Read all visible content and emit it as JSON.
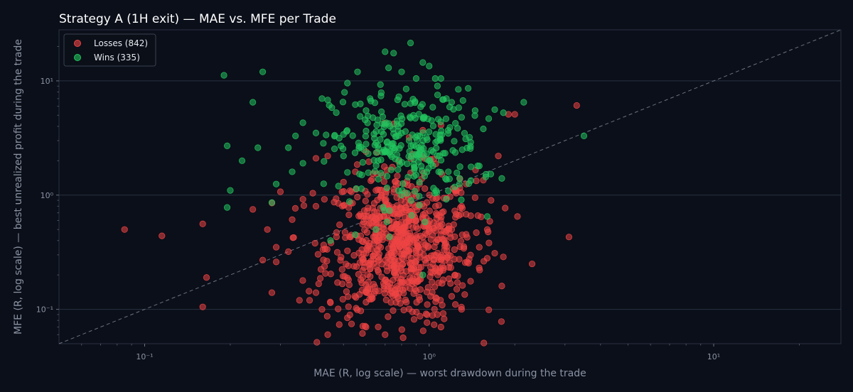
{
  "chart_data": {
    "type": "scatter",
    "title": "Strategy A (1H exit) — MAE vs. MFE per Trade",
    "xlabel": "MAE (R, log scale) — worst drawdown during the trade",
    "ylabel": "MFE (R, log scale) — best unrealized profit during the trade",
    "xscale": "log",
    "yscale": "log",
    "xlim": [
      0.05,
      28
    ],
    "ylim": [
      0.05,
      28
    ],
    "x_ticks": [
      "10⁻¹",
      "10⁰",
      "10¹"
    ],
    "y_ticks": [
      "10⁻¹",
      "10⁰",
      "10¹"
    ],
    "grid": "horizontal",
    "reference_line": "y = x (dashed)",
    "legend": "top-left",
    "colors": {
      "background": "#0b0f19",
      "grid": "#2b3242",
      "losses": "#ef4444",
      "wins": "#22c55e",
      "reference": "#6b7280"
    },
    "series": [
      {
        "name": "Losses (842)",
        "legend_label": "Losses (842)",
        "count": 842,
        "color": "#ef4444",
        "sample_points": [
          [
            0.085,
            0.5
          ],
          [
            0.115,
            0.44
          ],
          [
            0.16,
            0.56
          ],
          [
            0.16,
            0.105
          ],
          [
            0.165,
            0.19
          ],
          [
            0.17,
            0.05
          ],
          [
            0.24,
            0.75
          ],
          [
            0.26,
            0.27
          ],
          [
            0.27,
            0.5
          ],
          [
            0.28,
            0.14
          ],
          [
            0.29,
            0.35
          ],
          [
            0.29,
            0.26
          ],
          [
            0.3,
            1.07
          ],
          [
            0.32,
            0.32
          ],
          [
            0.33,
            0.61
          ],
          [
            0.35,
            0.12
          ],
          [
            0.36,
            0.92
          ],
          [
            0.38,
            0.12
          ],
          [
            0.39,
            1.04
          ],
          [
            0.4,
            0.14
          ],
          [
            0.42,
            0.1
          ],
          [
            0.44,
            0.06
          ],
          [
            0.45,
            0.05
          ],
          [
            0.4,
            2.1
          ],
          [
            0.44,
            2.2
          ],
          [
            0.5,
            1.3
          ],
          [
            0.55,
            1.6
          ],
          [
            0.6,
            2.4
          ],
          [
            0.65,
            1.1
          ],
          [
            0.7,
            0.9
          ],
          [
            0.8,
            0.7
          ],
          [
            0.9,
            0.6
          ],
          [
            1.0,
            0.5
          ],
          [
            1.1,
            0.45
          ],
          [
            1.2,
            0.5
          ],
          [
            1.3,
            0.8
          ],
          [
            1.4,
            0.66
          ],
          [
            1.5,
            0.35
          ],
          [
            1.6,
            0.28
          ],
          [
            1.7,
            0.31
          ],
          [
            1.8,
            0.16
          ],
          [
            1.85,
            0.77
          ],
          [
            1.9,
            5.1
          ],
          [
            2.0,
            5.1
          ],
          [
            1.75,
            2.2
          ],
          [
            2.3,
            0.25
          ],
          [
            3.1,
            0.43
          ],
          [
            3.3,
            6.1
          ],
          [
            1.25,
            0.15
          ],
          [
            1.2,
            0.13
          ],
          [
            1.1,
            4.1
          ],
          [
            0.95,
            3.7
          ],
          [
            0.85,
            3.2
          ],
          [
            0.75,
            4.2
          ],
          [
            1.35,
            1.25
          ],
          [
            1.45,
            0.95
          ],
          [
            1.55,
            1.35
          ],
          [
            1.65,
            0.9
          ],
          [
            0.6,
            0.07
          ],
          [
            0.7,
            0.06
          ],
          [
            0.8,
            0.05
          ],
          [
            0.9,
            0.05
          ],
          [
            1.0,
            0.05
          ],
          [
            1.1,
            0.07
          ],
          [
            1.3,
            0.1
          ],
          [
            0.52,
            0.24
          ],
          [
            0.58,
            0.17
          ],
          [
            0.66,
            0.22
          ],
          [
            0.72,
            0.3
          ],
          [
            0.78,
            0.38
          ]
        ]
      },
      {
        "name": "Wins (335)",
        "legend_label": "Wins (335)",
        "count": 335,
        "color": "#22c55e",
        "sample_points": [
          [
            0.19,
            11.2
          ],
          [
            0.26,
            12.0
          ],
          [
            0.24,
            6.5
          ],
          [
            0.195,
            2.7
          ],
          [
            0.25,
            2.6
          ],
          [
            0.22,
            2.0
          ],
          [
            0.2,
            1.1
          ],
          [
            0.195,
            0.78
          ],
          [
            0.28,
            0.86
          ],
          [
            0.29,
            1.25
          ],
          [
            0.32,
            2.6
          ],
          [
            0.36,
            4.3
          ],
          [
            0.4,
            3.5
          ],
          [
            0.42,
            7.0
          ],
          [
            0.44,
            6.8
          ],
          [
            0.5,
            3.4
          ],
          [
            0.55,
            6.2
          ],
          [
            0.6,
            5.5
          ],
          [
            0.56,
            12.0
          ],
          [
            0.62,
            7.0
          ],
          [
            0.7,
            18.0
          ],
          [
            0.75,
            17.5
          ],
          [
            0.72,
            13.0
          ],
          [
            0.8,
            12.0
          ],
          [
            0.83,
            8.5
          ],
          [
            0.9,
            10.5
          ],
          [
            0.86,
            21.5
          ],
          [
            0.95,
            14.5
          ],
          [
            1.0,
            13.5
          ],
          [
            1.05,
            10.5
          ],
          [
            1.1,
            10.5
          ],
          [
            1.15,
            7.0
          ],
          [
            1.2,
            6.5
          ],
          [
            1.3,
            4.8
          ],
          [
            1.45,
            5.5
          ],
          [
            1.55,
            3.8
          ],
          [
            1.7,
            5.6
          ],
          [
            2.15,
            6.5
          ],
          [
            3.5,
            3.3
          ],
          [
            1.8,
            1.4
          ],
          [
            1.5,
            1.8
          ],
          [
            1.4,
            2.9
          ],
          [
            1.6,
            0.65
          ],
          [
            0.45,
            0.4
          ],
          [
            0.55,
            0.45
          ],
          [
            0.65,
            0.5
          ],
          [
            0.8,
            1.0
          ],
          [
            0.9,
            1.5
          ],
          [
            1.0,
            2.0
          ],
          [
            0.95,
            0.2
          ],
          [
            0.33,
            1.6
          ],
          [
            0.36,
            1.9
          ],
          [
            0.5,
            2.2
          ],
          [
            0.6,
            2.8
          ],
          [
            0.7,
            2.4
          ],
          [
            0.85,
            3.0
          ],
          [
            0.92,
            2.6
          ],
          [
            0.98,
            2.3
          ],
          [
            1.02,
            4.5
          ],
          [
            0.88,
            5.0
          ],
          [
            0.78,
            4.0
          ],
          [
            0.68,
            3.6
          ],
          [
            0.58,
            1.5
          ],
          [
            0.48,
            1.2
          ],
          [
            1.08,
            1.6
          ]
        ]
      }
    ]
  }
}
